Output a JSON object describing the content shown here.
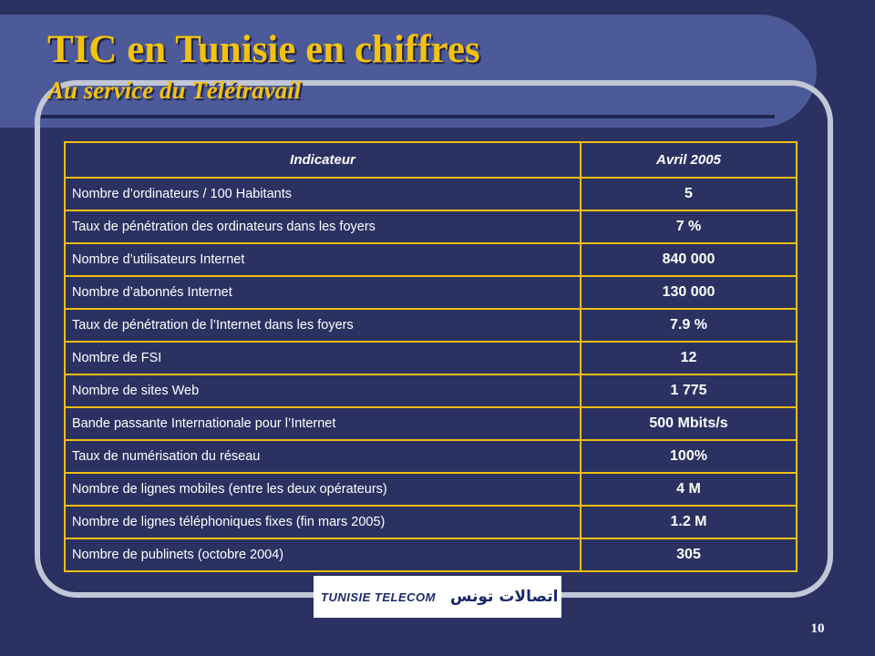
{
  "title": "TIC en Tunisie en chiffres",
  "subtitle": "Au service du Télétravail",
  "table": {
    "headers": [
      "Indicateur",
      "Avril 2005"
    ],
    "rows": [
      {
        "label": "Nombre d’ordinateurs / 100 Habitants",
        "value": "5"
      },
      {
        "label": "Taux de pénétration des ordinateurs dans les foyers",
        "value": "7 %"
      },
      {
        "label": "Nombre d’utilisateurs Internet",
        "value": "840 000"
      },
      {
        "label": "Nombre d’abonnés Internet",
        "value": "130 000"
      },
      {
        "label": "Taux de pénétration de l’Internet dans les foyers",
        "value": "7.9 %"
      },
      {
        "label": "Nombre de FSI",
        "value": "12"
      },
      {
        "label": "Nombre de sites Web",
        "value": "1 775"
      },
      {
        "label": "Bande passante Internationale pour l’Internet",
        "value": "500 Mbits/s"
      },
      {
        "label": "Taux de numérisation du réseau",
        "value": "100%"
      },
      {
        "label": "Nombre de lignes mobiles (entre les deux opérateurs)",
        "value": "4 M"
      },
      {
        "label": "Nombre de lignes téléphoniques fixes (fin mars 2005)",
        "value": "1.2 M"
      },
      {
        "label": "Nombre de publinets (octobre 2004)",
        "value": "305"
      }
    ]
  },
  "logo": {
    "latin": "TUNISIE TELECOM",
    "arabic": "اتصالات تونس",
    "icon": "telecom-swirl-icon"
  },
  "page_number": "10",
  "colors": {
    "background": "#2b3262",
    "title_bar": "#4c5a99",
    "title_text": "#f3c20d",
    "table_border": "#f2be10",
    "frame": "#c2c7d8"
  }
}
